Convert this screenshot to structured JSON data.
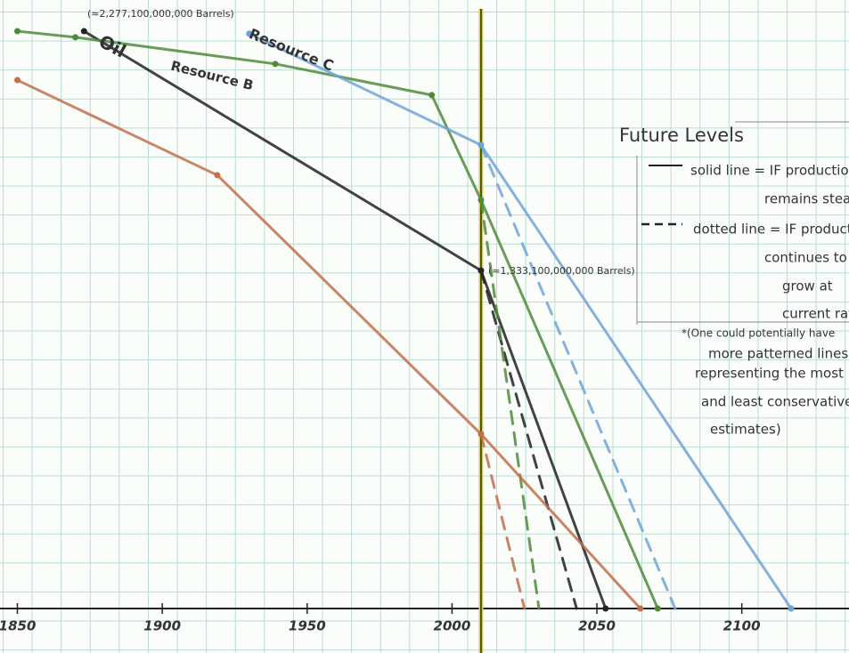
{
  "chart_data": {
    "type": "line",
    "xlim": [
      1844,
      2137
    ],
    "xticks": [
      1850,
      1900,
      1950,
      2000,
      2050,
      2100
    ],
    "ylim": [
      0,
      2400
    ],
    "grid": true,
    "reference_x": 2010,
    "series": [
      {
        "name": "Oil",
        "color": "#222222",
        "dashed": false,
        "x": [
          1873,
          2010,
          2053
        ],
        "values": [
          2277,
          1333,
          0
        ]
      },
      {
        "color": "#222222",
        "dashed": true,
        "x": [
          2010,
          2043
        ],
        "values": [
          1333,
          0
        ]
      },
      {
        "name": "Resource B",
        "color": "#4f8a3c",
        "dashed": false,
        "x": [
          1850,
          1870,
          1939,
          1993,
          2010,
          2071
        ],
        "values": [
          2277,
          2253,
          2148,
          2025,
          1611,
          0
        ]
      },
      {
        "color": "#4f8a3c",
        "dashed": true,
        "x": [
          2010,
          2030
        ],
        "values": [
          1611,
          0
        ]
      },
      {
        "name": "Resource C",
        "color": "#6ea3d8",
        "dashed": false,
        "x": [
          1930,
          2010,
          2117
        ],
        "values": [
          2267,
          1828,
          0
        ]
      },
      {
        "color": "#6ea3d8",
        "dashed": true,
        "x": [
          2010,
          2077
        ],
        "values": [
          1828,
          0
        ]
      },
      {
        "color": "#c0704a",
        "dashed": false,
        "x": [
          1850,
          1919,
          2010,
          2065
        ],
        "values": [
          2084,
          1709,
          688,
          0
        ]
      },
      {
        "color": "#c0704a",
        "dashed": true,
        "x": [
          2010,
          2025
        ],
        "values": [
          688,
          0
        ]
      }
    ],
    "annotations": [
      "(≈2,277,100,000,000 Barrels)",
      "(≈1,333,100,000,000 Barrels)"
    ],
    "legend": {
      "title": "Future Levels",
      "solid": [
        "solid line = IF production",
        "remains steady"
      ],
      "dotted": [
        "dotted line = IF production",
        "continues to",
        "grow at",
        "current rate"
      ],
      "note": [
        "*(One could potentially have",
        "more patterned lines",
        "representing the most",
        "and least conservative",
        "estimates)"
      ]
    }
  }
}
